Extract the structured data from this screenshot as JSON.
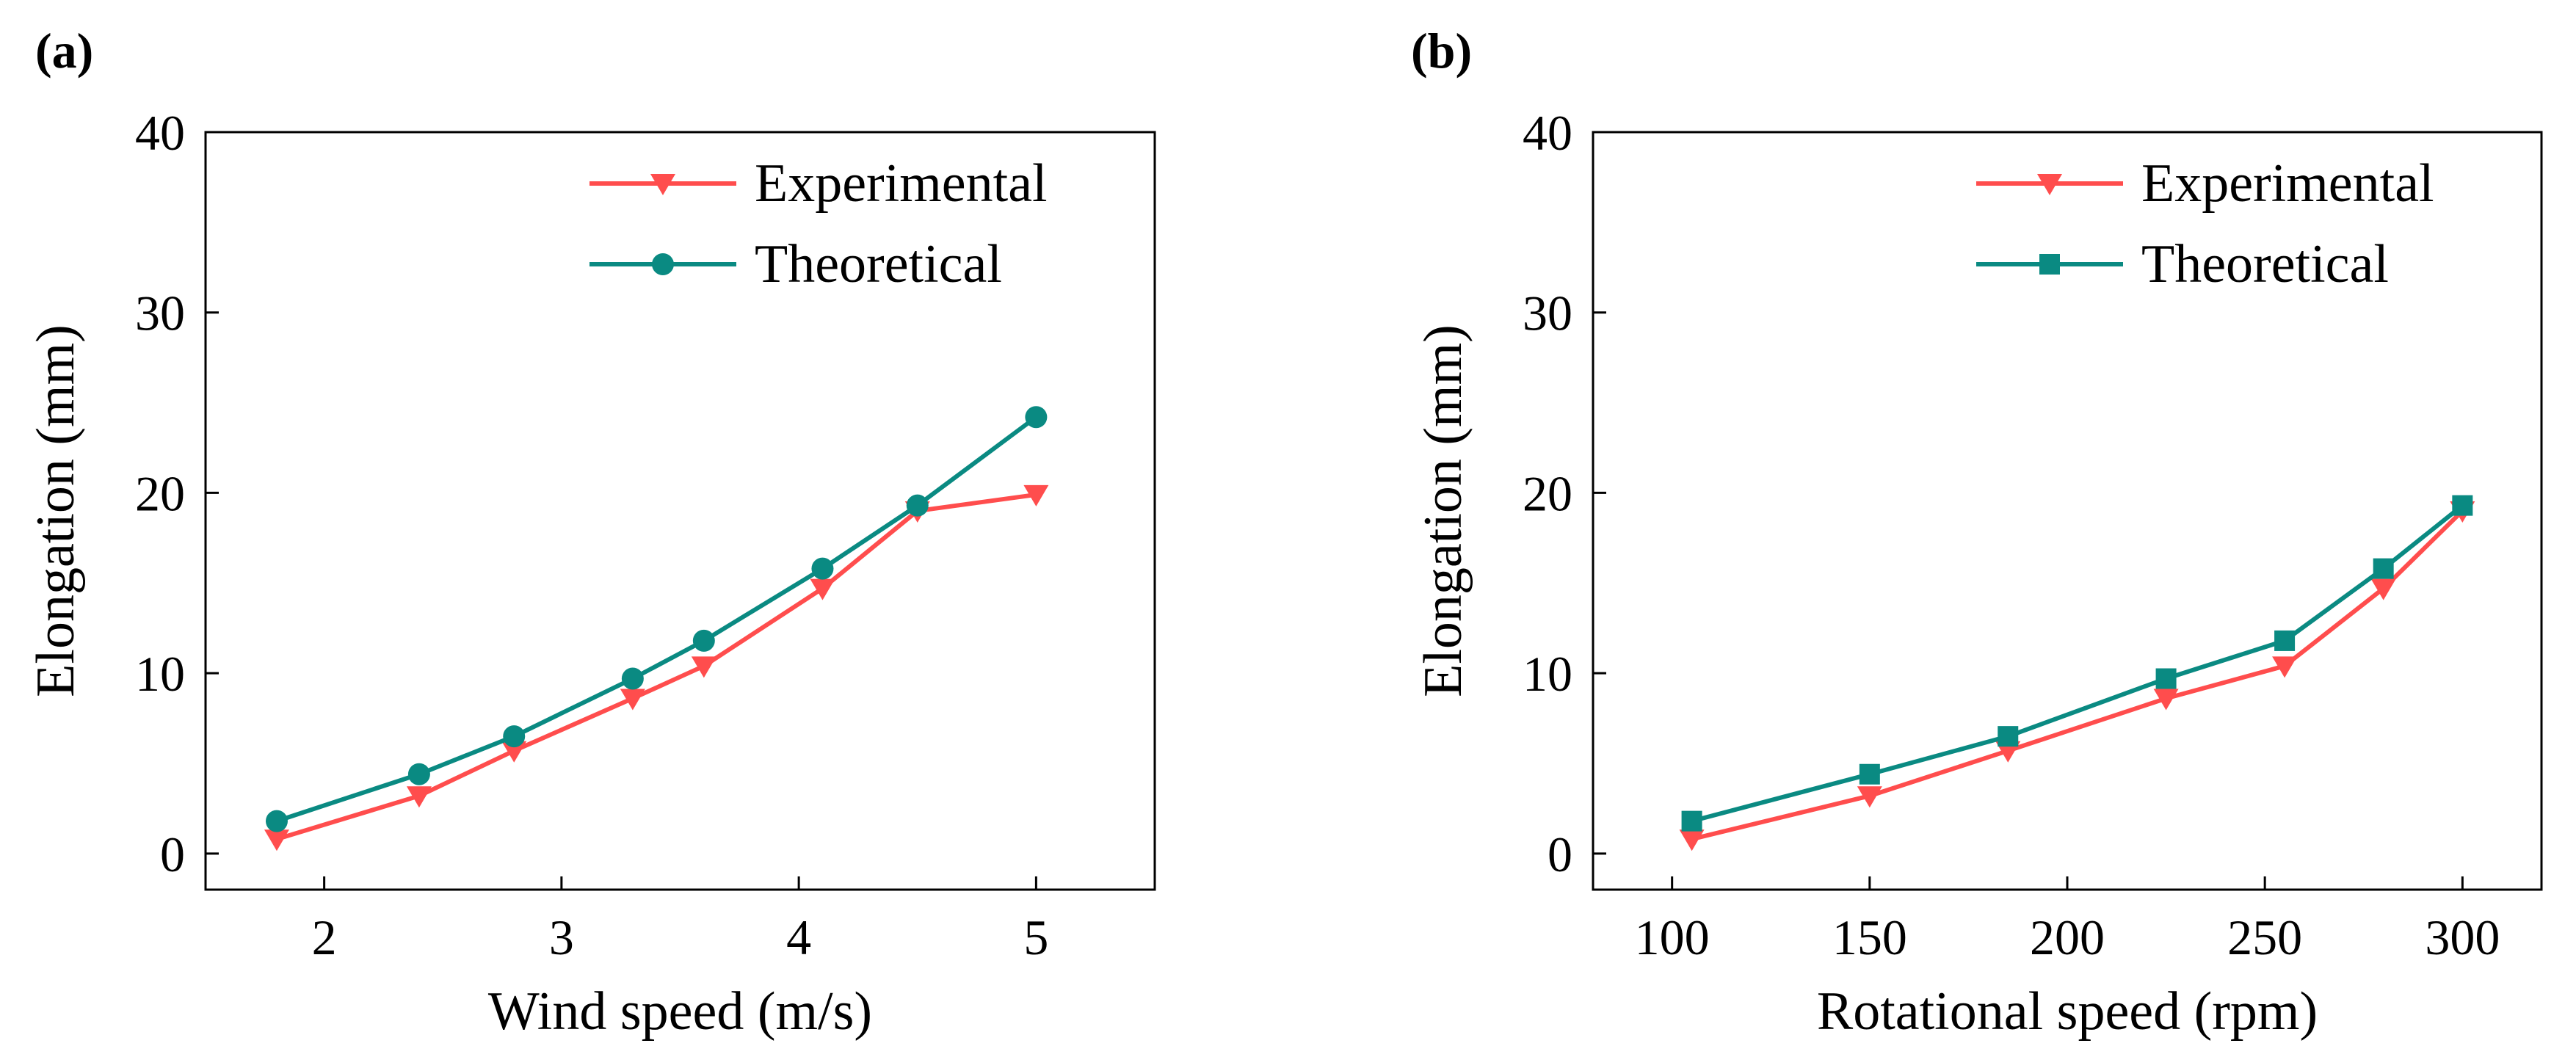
{
  "chart_data": [
    {
      "panel_label": "(a)",
      "type": "line",
      "xlabel": "Wind speed (m/s)",
      "ylabel": "Elongation (mm)",
      "xlim": [
        1.5,
        5.5
      ],
      "ylim": [
        -2,
        40
      ],
      "xticks": [
        2,
        3,
        4,
        5
      ],
      "yticks": [
        0,
        10,
        20,
        30,
        40
      ],
      "legend_position": "top-right",
      "series": [
        {
          "name": "Experimental",
          "color": "#ff4d4d",
          "marker": "triangle-down",
          "x": [
            1.8,
            2.4,
            2.8,
            3.3,
            3.6,
            4.1,
            4.5,
            5.0
          ],
          "values": [
            0.8,
            3.2,
            5.7,
            8.6,
            10.4,
            14.7,
            19.0,
            19.9
          ]
        },
        {
          "name": "Theoretical",
          "color": "#0a8a82",
          "marker": "circle",
          "x": [
            1.8,
            2.4,
            2.8,
            3.3,
            3.6,
            4.1,
            4.5,
            5.0
          ],
          "values": [
            1.8,
            4.4,
            6.5,
            9.7,
            11.8,
            15.8,
            19.3,
            24.2
          ]
        }
      ]
    },
    {
      "panel_label": "(b)",
      "type": "line",
      "xlabel": "Rotational speed (rpm)",
      "ylabel": "Elongation (mm)",
      "xlim": [
        80,
        320
      ],
      "ylim": [
        -2,
        40
      ],
      "xticks": [
        100,
        150,
        200,
        250,
        300
      ],
      "yticks": [
        0,
        10,
        20,
        30,
        40
      ],
      "legend_position": "top-right",
      "series": [
        {
          "name": "Experimental",
          "color": "#ff4d4d",
          "marker": "triangle-down",
          "x": [
            105,
            150,
            185,
            225,
            255,
            280,
            300
          ],
          "values": [
            0.8,
            3.2,
            5.7,
            8.6,
            10.4,
            14.7,
            19.0
          ]
        },
        {
          "name": "Theoretical",
          "color": "#0a8a82",
          "marker": "square",
          "x": [
            105,
            150,
            185,
            225,
            255,
            280,
            300
          ],
          "values": [
            1.8,
            4.4,
            6.5,
            9.7,
            11.8,
            15.8,
            19.3
          ]
        }
      ]
    }
  ]
}
